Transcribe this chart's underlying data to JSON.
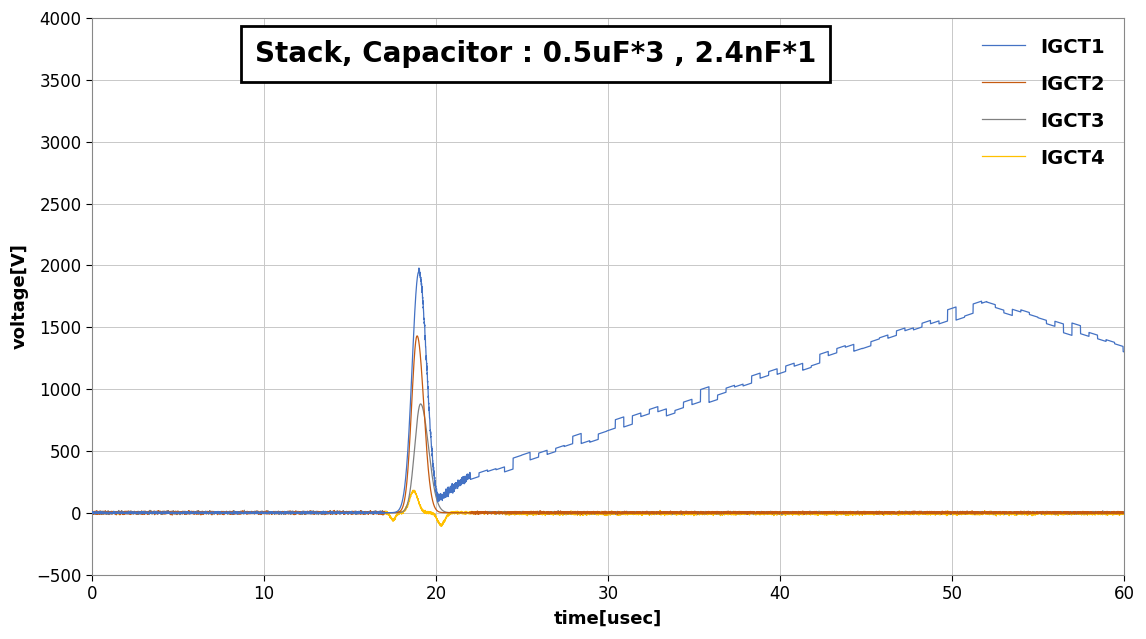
{
  "title": "Stack, Capacitor : 0.5uF*3 , 2.4nF*1",
  "xlabel": "time[usec]",
  "ylabel": "voltage[V]",
  "xlim": [
    0,
    60
  ],
  "ylim": [
    -500,
    4000
  ],
  "yticks": [
    -500,
    0,
    500,
    1000,
    1500,
    2000,
    2500,
    3000,
    3500,
    4000
  ],
  "xticks": [
    0,
    10,
    20,
    30,
    40,
    50,
    60
  ],
  "colors": {
    "IGCT1": "#4472C4",
    "IGCT2": "#C55A11",
    "IGCT3": "#808080",
    "IGCT4": "#FFC000"
  },
  "background_color": "#FFFFFF",
  "grid_color": "#C8C8C8",
  "title_fontsize": 20,
  "label_fontsize": 13,
  "tick_fontsize": 12,
  "legend_fontsize": 14
}
